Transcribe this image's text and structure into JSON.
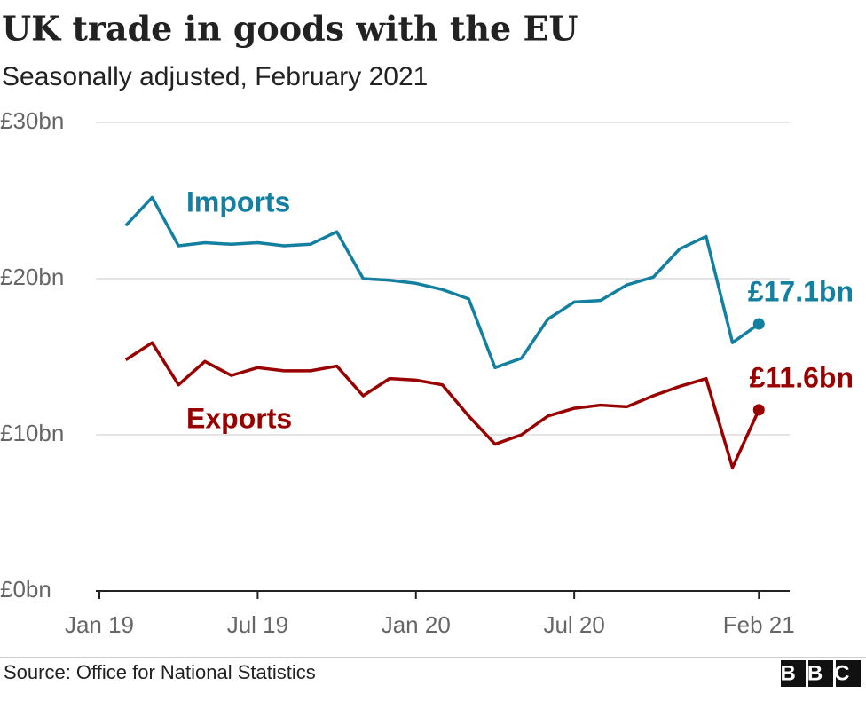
{
  "chart_data": {
    "type": "line",
    "title": "UK trade in goods with the EU",
    "subtitle": "Seasonally adjusted, February 2021",
    "source": "Source: Office for National Statistics",
    "logo": "BBC",
    "x": [
      "2019-02",
      "2019-03",
      "2019-04",
      "2019-05",
      "2019-06",
      "2019-07",
      "2019-08",
      "2019-09",
      "2019-10",
      "2019-11",
      "2019-12",
      "2020-01",
      "2020-02",
      "2020-03",
      "2020-04",
      "2020-05",
      "2020-06",
      "2020-07",
      "2020-08",
      "2020-09",
      "2020-10",
      "2020-11",
      "2020-12",
      "2021-01",
      "2021-02"
    ],
    "series": [
      {
        "name": "Imports",
        "color": "#1380a1",
        "values": [
          23.4,
          25.2,
          22.1,
          22.3,
          22.2,
          22.3,
          22.1,
          22.2,
          23.0,
          20.0,
          19.9,
          19.7,
          19.3,
          18.7,
          14.3,
          14.9,
          17.4,
          18.5,
          18.6,
          19.6,
          20.1,
          21.9,
          22.7,
          15.9,
          17.1
        ],
        "value_labels": [
          null,
          null,
          null,
          null,
          null,
          null,
          null,
          null,
          null,
          null,
          null,
          null,
          null,
          null,
          null,
          null,
          null,
          null,
          null,
          null,
          null,
          null,
          null,
          null,
          "£17.1bn"
        ]
      },
      {
        "name": "Exports",
        "color": "#990000",
        "values": [
          14.8,
          15.9,
          13.2,
          14.7,
          13.8,
          14.3,
          14.1,
          14.1,
          14.4,
          12.5,
          13.6,
          13.5,
          13.2,
          11.2,
          9.4,
          10.0,
          11.2,
          11.7,
          11.9,
          11.8,
          12.5,
          13.1,
          13.6,
          7.9,
          11.6
        ],
        "value_labels": [
          null,
          null,
          null,
          null,
          null,
          null,
          null,
          null,
          null,
          null,
          null,
          null,
          null,
          null,
          null,
          null,
          null,
          null,
          null,
          null,
          null,
          null,
          null,
          null,
          "£11.6bn"
        ]
      }
    ],
    "xlim": [
      "2019-01",
      "2021-03"
    ],
    "xticks": [
      {
        "value": "2019-01",
        "label": "Jan 19"
      },
      {
        "value": "2019-07",
        "label": "Jul 19"
      },
      {
        "value": "2020-01",
        "label": "Jan 20"
      },
      {
        "value": "2020-07",
        "label": "Jul 20"
      },
      {
        "value": "2021-02",
        "label": "Feb 21"
      }
    ],
    "ylim": [
      0,
      30
    ],
    "yticks": [
      {
        "value": 0,
        "label": "£0bn"
      },
      {
        "value": 10,
        "label": "£10bn"
      },
      {
        "value": 20,
        "label": "£20bn"
      },
      {
        "value": 30,
        "label": "£30bn"
      }
    ],
    "grid": true
  }
}
